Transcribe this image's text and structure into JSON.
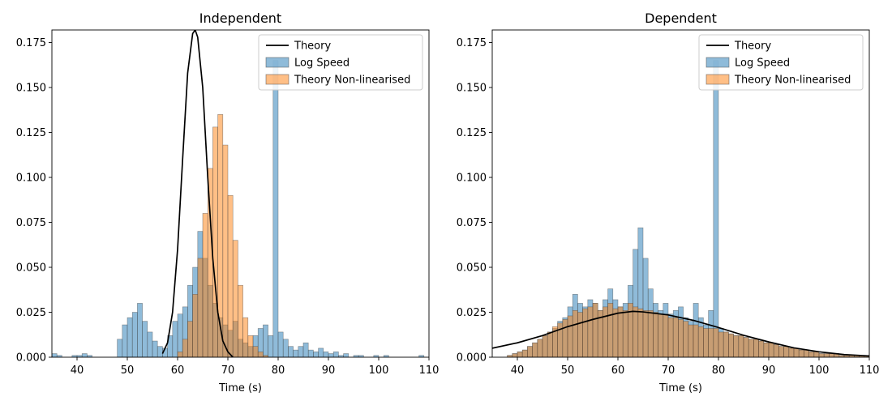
{
  "chart_data": [
    {
      "type": "area",
      "title": "Independent",
      "xlabel": "Time (s)",
      "ylabel": "",
      "xlim": [
        35,
        110
      ],
      "ylim": [
        0,
        0.182
      ],
      "xticks": [
        40,
        50,
        60,
        70,
        80,
        90,
        100,
        110
      ],
      "yticks": [
        0.0,
        0.025,
        0.05,
        0.075,
        0.1,
        0.125,
        0.15,
        0.175
      ],
      "grid": false,
      "legend": "top-right",
      "series": [
        {
          "name": "Theory",
          "kind": "line",
          "color": "#000000",
          "x": [
            57,
            58,
            59,
            60,
            61,
            62,
            63,
            63.5,
            64,
            65,
            66,
            67,
            68,
            69,
            70,
            71
          ],
          "y": [
            0.002,
            0.008,
            0.025,
            0.06,
            0.11,
            0.158,
            0.18,
            0.182,
            0.178,
            0.15,
            0.1,
            0.055,
            0.025,
            0.009,
            0.003,
            0.0
          ]
        },
        {
          "name": "Log Speed",
          "kind": "histogram",
          "color": "#1f77b4",
          "x": [
            35,
            36,
            37,
            38,
            39,
            40,
            41,
            42,
            43,
            44,
            45,
            46,
            47,
            48,
            49,
            50,
            51,
            52,
            53,
            54,
            55,
            56,
            57,
            58,
            59,
            60,
            61,
            62,
            63,
            64,
            65,
            66,
            67,
            68,
            69,
            70,
            71,
            72,
            73,
            74,
            75,
            76,
            77,
            78,
            79,
            80,
            81,
            82,
            83,
            84,
            85,
            86,
            87,
            88,
            89,
            90,
            91,
            92,
            93,
            94,
            95,
            96,
            97,
            98,
            99,
            100,
            101,
            102,
            103,
            104,
            105,
            106,
            107,
            108,
            109
          ],
          "y": [
            0.002,
            0.001,
            0.0,
            0.0,
            0.001,
            0.001,
            0.002,
            0.001,
            0.0,
            0.0,
            0.0,
            0.0,
            0.0,
            0.01,
            0.018,
            0.022,
            0.025,
            0.03,
            0.02,
            0.014,
            0.009,
            0.006,
            0.005,
            0.012,
            0.02,
            0.024,
            0.028,
            0.04,
            0.05,
            0.07,
            0.055,
            0.04,
            0.03,
            0.022,
            0.018,
            0.015,
            0.02,
            0.01,
            0.008,
            0.006,
            0.012,
            0.016,
            0.018,
            0.012,
            0.165,
            0.014,
            0.01,
            0.006,
            0.004,
            0.006,
            0.008,
            0.004,
            0.003,
            0.005,
            0.003,
            0.002,
            0.003,
            0.001,
            0.002,
            0.0,
            0.001,
            0.001,
            0.0,
            0.0,
            0.001,
            0.0,
            0.001,
            0.0,
            0.0,
            0.0,
            0.0,
            0.0,
            0.0,
            0.001,
            0.0
          ]
        },
        {
          "name": "Theory Non-linearised",
          "kind": "histogram",
          "color": "#ff7f0e",
          "x": [
            60,
            61,
            62,
            63,
            64,
            65,
            66,
            67,
            68,
            69,
            70,
            71,
            72,
            73,
            74,
            75,
            76,
            77,
            78,
            79
          ],
          "y": [
            0.003,
            0.01,
            0.02,
            0.035,
            0.055,
            0.08,
            0.105,
            0.128,
            0.135,
            0.118,
            0.09,
            0.065,
            0.04,
            0.022,
            0.012,
            0.006,
            0.003,
            0.001,
            0.0,
            0.0
          ]
        }
      ]
    },
    {
      "type": "area",
      "title": "Dependent",
      "xlabel": "Time (s)",
      "ylabel": "",
      "xlim": [
        35,
        110
      ],
      "ylim": [
        0,
        0.182
      ],
      "xticks": [
        40,
        50,
        60,
        70,
        80,
        90,
        100,
        110
      ],
      "yticks": [
        0.0,
        0.025,
        0.05,
        0.075,
        0.1,
        0.125,
        0.15,
        0.175
      ],
      "grid": false,
      "legend": "top-right",
      "series": [
        {
          "name": "Theory",
          "kind": "line",
          "color": "#000000",
          "x": [
            35,
            40,
            45,
            50,
            55,
            60,
            63,
            65,
            70,
            75,
            80,
            85,
            90,
            95,
            100,
            105,
            110
          ],
          "y": [
            0.005,
            0.008,
            0.012,
            0.017,
            0.021,
            0.0245,
            0.0255,
            0.0252,
            0.0235,
            0.0205,
            0.0165,
            0.0122,
            0.0085,
            0.0052,
            0.003,
            0.0015,
            0.0007
          ]
        },
        {
          "name": "Log Speed",
          "kind": "histogram",
          "color": "#1f77b4",
          "x": [
            35,
            36,
            37,
            38,
            39,
            40,
            41,
            42,
            43,
            44,
            45,
            46,
            47,
            48,
            49,
            50,
            51,
            52,
            53,
            54,
            55,
            56,
            57,
            58,
            59,
            60,
            61,
            62,
            63,
            64,
            65,
            66,
            67,
            68,
            69,
            70,
            71,
            72,
            73,
            74,
            75,
            76,
            77,
            78,
            79,
            80,
            81,
            82,
            83,
            84,
            85,
            86,
            87,
            88,
            89,
            90,
            91,
            92,
            93,
            94,
            95,
            96,
            97,
            98,
            99,
            100,
            101,
            102,
            103,
            104,
            105,
            106,
            107,
            108,
            109
          ],
          "y": [
            0.0,
            0.0,
            0.0,
            0.001,
            0.002,
            0.003,
            0.004,
            0.006,
            0.008,
            0.01,
            0.012,
            0.014,
            0.016,
            0.02,
            0.022,
            0.028,
            0.035,
            0.03,
            0.028,
            0.032,
            0.03,
            0.026,
            0.032,
            0.038,
            0.032,
            0.028,
            0.03,
            0.04,
            0.06,
            0.072,
            0.055,
            0.038,
            0.03,
            0.026,
            0.03,
            0.024,
            0.026,
            0.028,
            0.022,
            0.02,
            0.03,
            0.022,
            0.018,
            0.026,
            0.165,
            0.016,
            0.014,
            0.013,
            0.012,
            0.012,
            0.011,
            0.01,
            0.01,
            0.009,
            0.008,
            0.008,
            0.007,
            0.006,
            0.006,
            0.005,
            0.005,
            0.004,
            0.004,
            0.003,
            0.003,
            0.002,
            0.002,
            0.002,
            0.002,
            0.001,
            0.001,
            0.001,
            0.001,
            0.001,
            0.001
          ]
        },
        {
          "name": "Theory Non-linearised",
          "kind": "histogram",
          "color": "#ff7f0e",
          "x": [
            35,
            36,
            37,
            38,
            39,
            40,
            41,
            42,
            43,
            44,
            45,
            46,
            47,
            48,
            49,
            50,
            51,
            52,
            53,
            54,
            55,
            56,
            57,
            58,
            59,
            60,
            61,
            62,
            63,
            64,
            65,
            66,
            67,
            68,
            69,
            70,
            71,
            72,
            73,
            74,
            75,
            76,
            77,
            78,
            79,
            80,
            81,
            82,
            83,
            84,
            85,
            86,
            87,
            88,
            89,
            90,
            91,
            92,
            93,
            94,
            95,
            96,
            97,
            98,
            99,
            100,
            101,
            102,
            103,
            104,
            105,
            106,
            107,
            108,
            109
          ],
          "y": [
            0.0,
            0.0,
            0.0,
            0.001,
            0.002,
            0.003,
            0.004,
            0.006,
            0.008,
            0.01,
            0.012,
            0.014,
            0.017,
            0.019,
            0.021,
            0.023,
            0.026,
            0.025,
            0.027,
            0.028,
            0.03,
            0.026,
            0.028,
            0.03,
            0.027,
            0.028,
            0.026,
            0.03,
            0.028,
            0.027,
            0.026,
            0.026,
            0.025,
            0.024,
            0.024,
            0.022,
            0.022,
            0.021,
            0.02,
            0.018,
            0.018,
            0.017,
            0.016,
            0.016,
            0.016,
            0.014,
            0.014,
            0.013,
            0.012,
            0.012,
            0.011,
            0.01,
            0.01,
            0.009,
            0.008,
            0.008,
            0.007,
            0.006,
            0.006,
            0.005,
            0.005,
            0.004,
            0.004,
            0.003,
            0.003,
            0.002,
            0.002,
            0.002,
            0.002,
            0.001,
            0.001,
            0.001,
            0.001,
            0.001,
            0.001
          ]
        }
      ]
    }
  ]
}
